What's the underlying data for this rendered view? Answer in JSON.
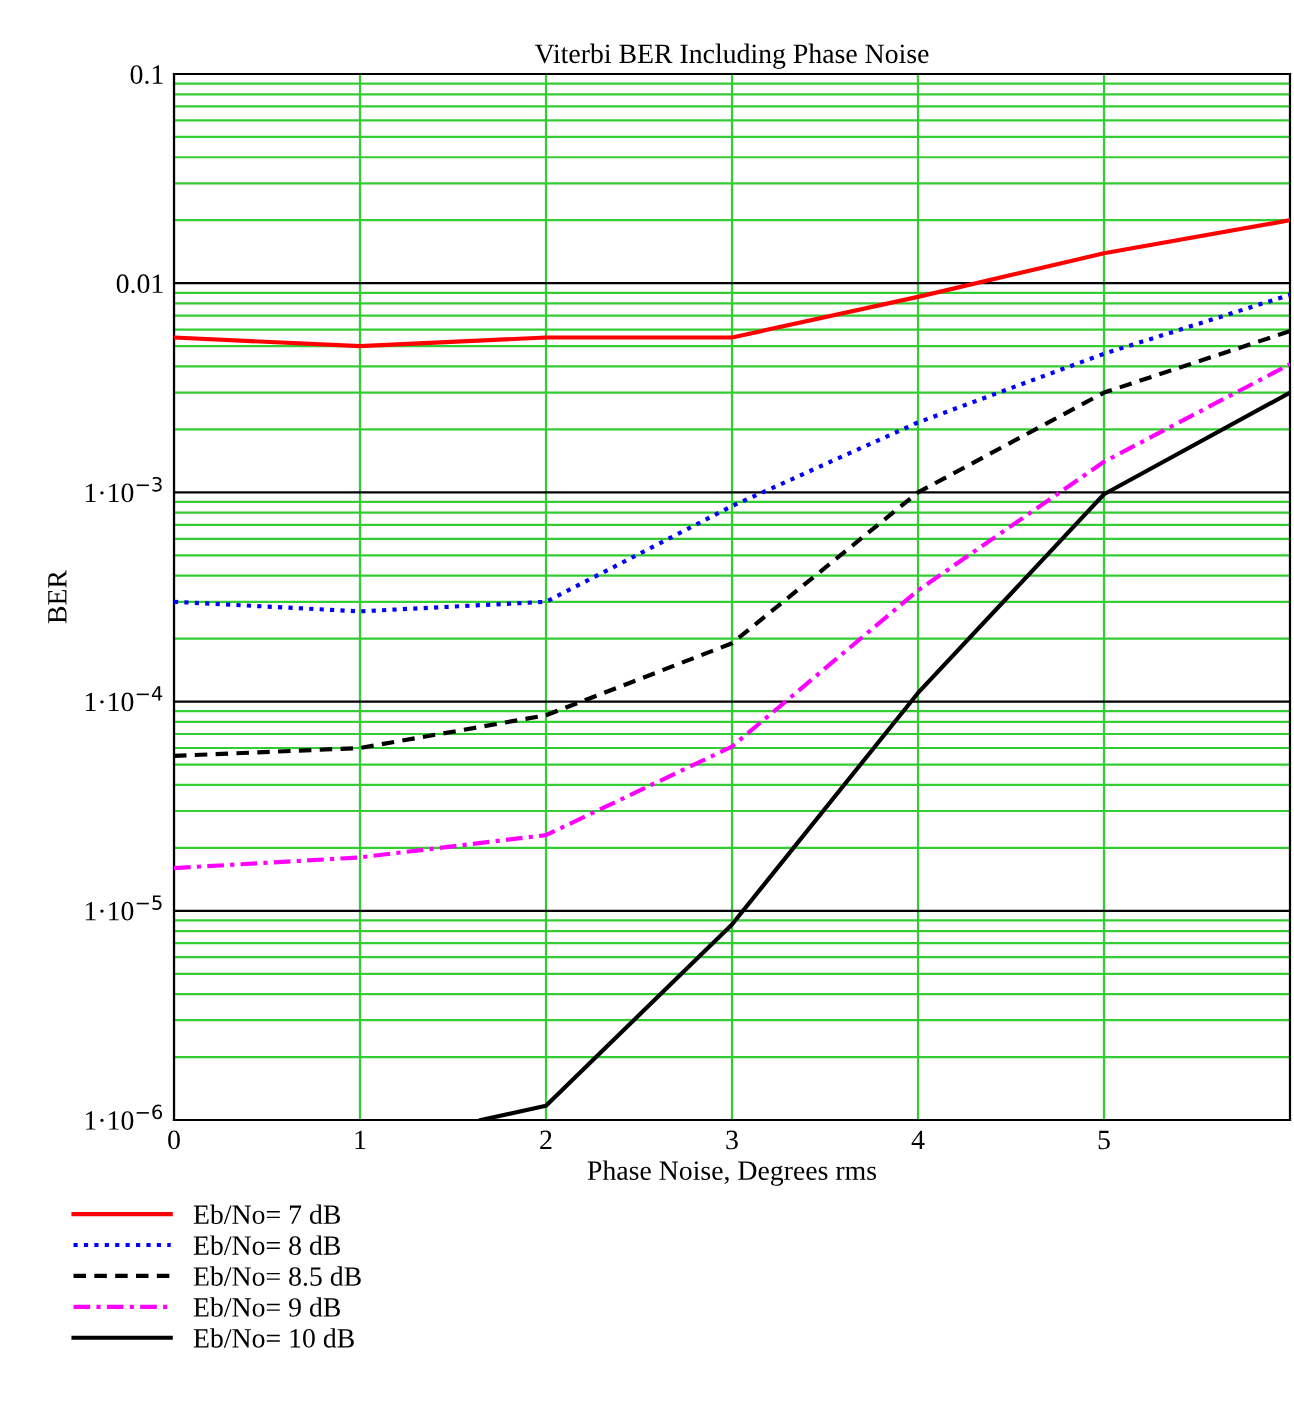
{
  "chart_data": {
    "type": "line",
    "title": "Viterbi BER Including Phase Noise",
    "xlabel": "Phase Noise, Degrees rms",
    "ylabel": "BER",
    "x": [
      0,
      1,
      2,
      3,
      4,
      5,
      6
    ],
    "series": [
      {
        "name": "Eb/No= 7 dB",
        "color": "#ff0000",
        "line_style": "solid",
        "values": [
          0.0055,
          0.005,
          0.0055,
          0.0055,
          0.0086,
          0.0139,
          0.02
        ]
      },
      {
        "name": "Eb/No= 8 dB",
        "color": "#0000ff",
        "line_style": "dotted",
        "values": [
          0.0003,
          0.00027,
          0.0003,
          0.00086,
          0.00216,
          0.0046,
          0.0088
        ]
      },
      {
        "name": "Eb/No= 8.5 dB",
        "color": "#000000",
        "line_style": "dashed",
        "values": [
          5.5e-05,
          6e-05,
          8.6e-05,
          0.00019,
          0.001,
          0.003,
          0.0059
        ]
      },
      {
        "name": "Eb/No= 9 dB",
        "color": "#ff00ff",
        "line_style": "dashdot",
        "values": [
          1.6e-05,
          1.8e-05,
          2.3e-05,
          6.1e-05,
          0.00034,
          0.0014,
          0.0041
        ]
      },
      {
        "name": "Eb/No= 10 dB",
        "color": "#000000",
        "line_style": "solid",
        "x": [
          1.65,
          2,
          3,
          4,
          5,
          6
        ],
        "values": [
          1e-06,
          1.17e-06,
          8.6e-06,
          0.00011,
          0.00098,
          0.003
        ]
      }
    ],
    "log": "y",
    "xlim": [
      0,
      6
    ],
    "xticks": [
      0,
      1,
      2,
      3,
      4,
      5
    ],
    "ylim": [
      1e-06,
      0.1
    ],
    "yticks": [
      {
        "value": 1e-06,
        "label": "1·10$^{−6}$"
      },
      {
        "value": 1e-05,
        "label": "1·10$^{−5}$"
      },
      {
        "value": 0.0001,
        "label": "1·10$^{−4}$"
      },
      {
        "value": 0.001,
        "label": "1·10$^{−3}$"
      },
      {
        "value": 0.01,
        "label": "0.01"
      },
      {
        "value": 0.1,
        "label": "0.1"
      }
    ],
    "grid": true,
    "legend": "bottom left"
  }
}
